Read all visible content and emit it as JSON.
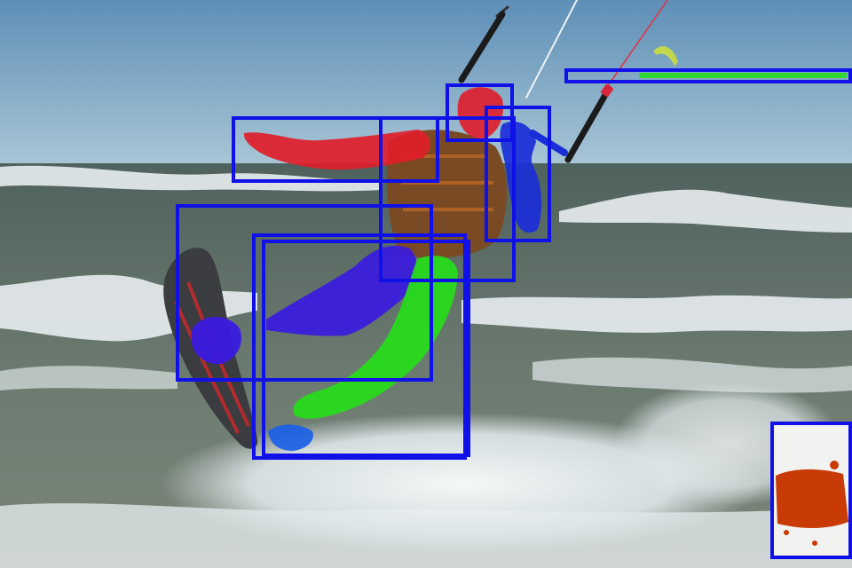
{
  "scene": {
    "subject": "kitesurfer",
    "colors": {
      "sky_top": "#6f9dc1",
      "sky_horizon": "#a6c4d6",
      "sea": "#5f6f66",
      "foam": "#e9eef0",
      "box": "#1010e8",
      "mask_red": "#e01d2a",
      "mask_blue": "#1a2ed8",
      "mask_green": "#25e017",
      "mask_purple": "#3a1ae0",
      "mask_orange": "#c83a06",
      "vest": "#7a4a24"
    }
  },
  "annotations": {
    "box_count": 9,
    "labels": []
  }
}
